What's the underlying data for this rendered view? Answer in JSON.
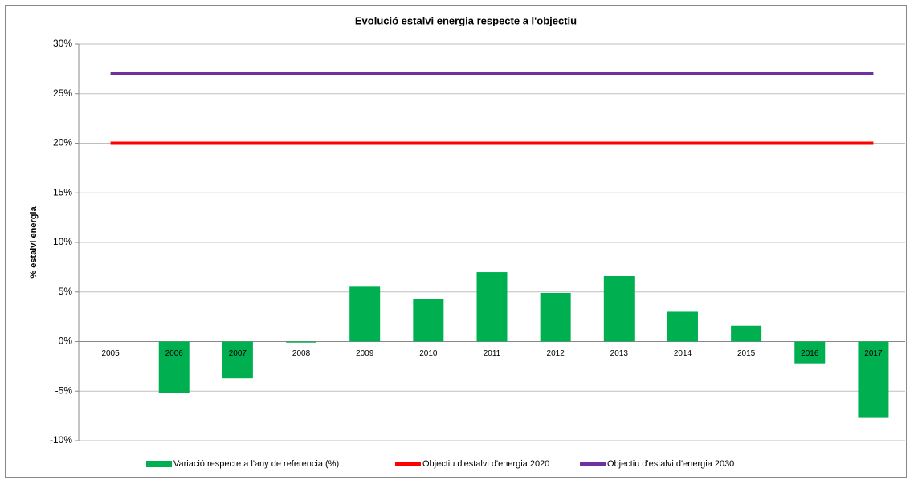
{
  "chart_data": {
    "type": "bar",
    "title": "Evolució estalvi energia respecte a l'objectiu",
    "y_label": "% estalvi energia",
    "categories": [
      "2005",
      "2006",
      "2007",
      "2008",
      "2009",
      "2010",
      "2011",
      "2012",
      "2013",
      "2014",
      "2015",
      "2016",
      "2017"
    ],
    "series": [
      {
        "name": "Variació respecte a l'any de referencia (%)",
        "type": "bar",
        "color": "#00b050",
        "values": [
          0,
          -5.2,
          -3.7,
          -0.1,
          5.6,
          4.3,
          7.0,
          4.9,
          6.6,
          3.0,
          1.6,
          -2.2,
          -7.7
        ]
      },
      {
        "name": "Objectiu d'estalvi d'energia 2020",
        "type": "line",
        "color": "#ff0000",
        "values": [
          20,
          20,
          20,
          20,
          20,
          20,
          20,
          20,
          20,
          20,
          20,
          20,
          20
        ]
      },
      {
        "name": "Objectiu d'estalvi d'energia 2030",
        "type": "line",
        "color": "#7030a0",
        "values": [
          27,
          27,
          27,
          27,
          27,
          27,
          27,
          27,
          27,
          27,
          27,
          27,
          27
        ]
      }
    ],
    "ylim": [
      -10,
      30
    ],
    "yticks": [
      {
        "value": -10,
        "label": "-10%"
      },
      {
        "value": -5,
        "label": "-5%"
      },
      {
        "value": 0,
        "label": "0%"
      },
      {
        "value": 5,
        "label": "5%"
      },
      {
        "value": 10,
        "label": "10%"
      },
      {
        "value": 15,
        "label": "15%"
      },
      {
        "value": 20,
        "label": "20%"
      },
      {
        "value": 25,
        "label": "25%"
      },
      {
        "value": 30,
        "label": "30%"
      }
    ],
    "grid": true
  }
}
